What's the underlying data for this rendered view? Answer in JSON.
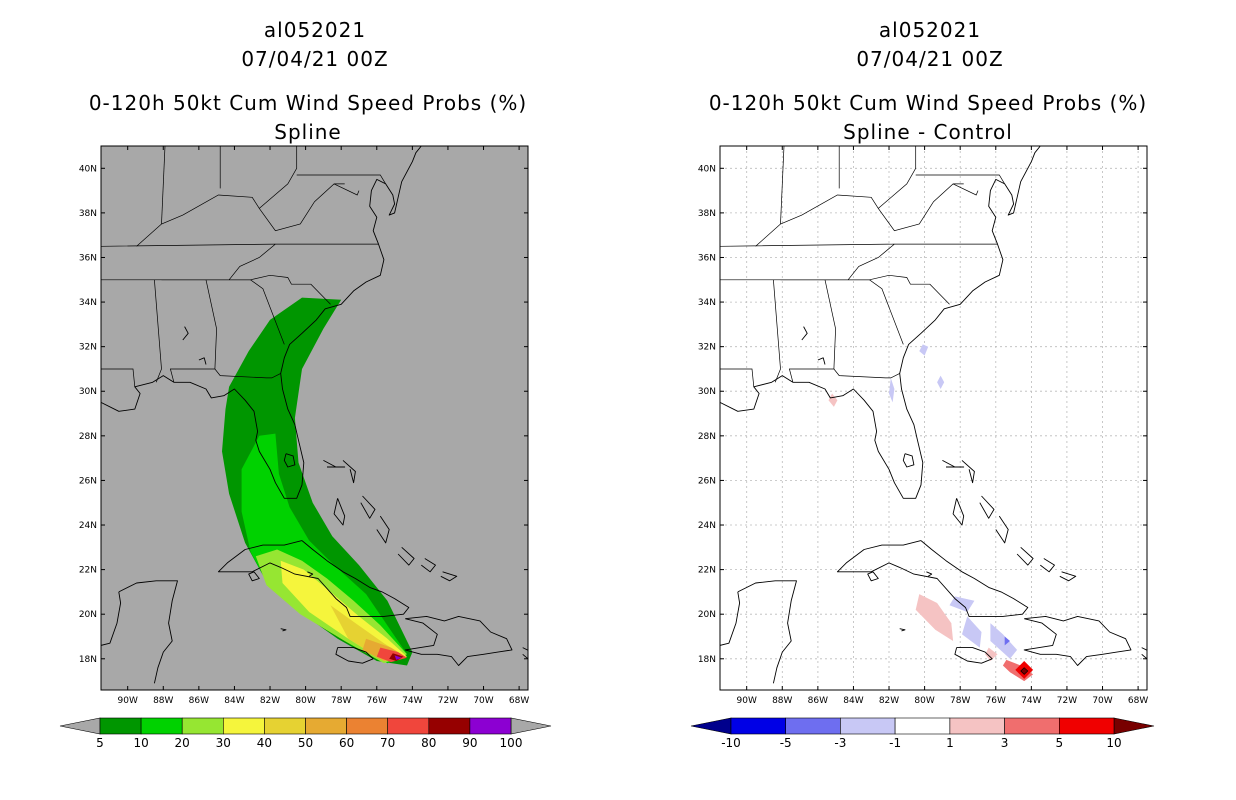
{
  "panels": [
    {
      "id": "left",
      "storm_id": "al052021",
      "datetime": "07/04/21 00Z",
      "product": "0-120h 50kt Cum Wind Speed Probs (%)",
      "variant": "Spline",
      "background": "#a8a8a8",
      "colorbar": {
        "labels": [
          "5",
          "10",
          "20",
          "30",
          "40",
          "50",
          "60",
          "70",
          "80",
          "90",
          "100"
        ],
        "colors": [
          "#009600",
          "#00d200",
          "#96e632",
          "#f5f53c",
          "#e6d232",
          "#e6aa32",
          "#eb8232",
          "#f0463c",
          "#960000",
          "#8c00d2"
        ],
        "arrow_color": "#a8a8a8"
      }
    },
    {
      "id": "right",
      "storm_id": "al052021",
      "datetime": "07/04/21 00Z",
      "product": "0-120h 50kt Cum Wind Speed Probs (%)",
      "variant": "Spline - Control",
      "background": "#ffffff",
      "colorbar": {
        "labels": [
          "-10",
          "-5",
          "-3",
          "-1",
          "1",
          "3",
          "5",
          "10"
        ],
        "colors": [
          "#0000e6",
          "#6e6ef0",
          "#c8c8f5",
          "#ffffff",
          "#f5c3c3",
          "#f06e6e",
          "#f00000"
        ],
        "arrow_left": "#00008c",
        "arrow_right": "#780000"
      }
    }
  ],
  "axes": {
    "lat_labels": [
      "40N",
      "38N",
      "36N",
      "34N",
      "32N",
      "30N",
      "28N",
      "26N",
      "24N",
      "22N",
      "20N",
      "18N"
    ],
    "lon_labels": [
      "90W",
      "88W",
      "86W",
      "84W",
      "82W",
      "80W",
      "78W",
      "76W",
      "74W",
      "72W",
      "70W",
      "68W"
    ],
    "lat_values": [
      40,
      38,
      36,
      34,
      32,
      30,
      28,
      26,
      24,
      22,
      20,
      18
    ],
    "lon_values": [
      -90,
      -88,
      -86,
      -84,
      -82,
      -80,
      -78,
      -76,
      -74,
      -72,
      -70,
      -68
    ],
    "lat_range": [
      16.6,
      41.0
    ],
    "lon_range": [
      -91.5,
      -67.5
    ]
  },
  "probability_field": [
    {
      "level": "5",
      "color": "#009600",
      "polygon": [
        [
          -84.5,
          29.2
        ],
        [
          -84.3,
          30.2
        ],
        [
          -83.2,
          31.8
        ],
        [
          -82.0,
          33.2
        ],
        [
          -80.2,
          34.2
        ],
        [
          -78.0,
          34.1
        ],
        [
          -79.0,
          32.8
        ],
        [
          -80.2,
          31.0
        ],
        [
          -80.6,
          28.8
        ],
        [
          -80.4,
          26.8
        ],
        [
          -79.6,
          25.0
        ],
        [
          -78.5,
          23.5
        ],
        [
          -77.0,
          22.2
        ],
        [
          -75.4,
          20.6
        ],
        [
          -74.0,
          18.3
        ],
        [
          -74.3,
          17.7
        ],
        [
          -76.0,
          17.9
        ],
        [
          -78.2,
          18.9
        ],
        [
          -80.5,
          20.2
        ],
        [
          -82.3,
          21.6
        ],
        [
          -83.4,
          23.2
        ],
        [
          -84.3,
          25.4
        ],
        [
          -84.7,
          27.3
        ]
      ]
    },
    {
      "level": "10",
      "color": "#00d200",
      "polygon": [
        [
          -83.6,
          26.5
        ],
        [
          -82.6,
          28.0
        ],
        [
          -81.7,
          28.1
        ],
        [
          -81.5,
          26.3
        ],
        [
          -80.9,
          24.8
        ],
        [
          -79.8,
          23.3
        ],
        [
          -78.4,
          22.2
        ],
        [
          -76.6,
          20.9
        ],
        [
          -74.3,
          18.2
        ],
        [
          -75.4,
          17.8
        ],
        [
          -77.4,
          18.6
        ],
        [
          -80.0,
          19.9
        ],
        [
          -82.0,
          21.2
        ],
        [
          -83.1,
          22.8
        ],
        [
          -83.6,
          24.6
        ]
      ]
    },
    {
      "level": "20",
      "color": "#96e632",
      "polygon": [
        [
          -82.8,
          22.6
        ],
        [
          -81.6,
          22.9
        ],
        [
          -80.2,
          22.4
        ],
        [
          -78.8,
          21.6
        ],
        [
          -77.3,
          20.6
        ],
        [
          -75.8,
          19.5
        ],
        [
          -74.3,
          18.2
        ],
        [
          -75.6,
          17.8
        ],
        [
          -77.8,
          18.8
        ],
        [
          -80.3,
          20.0
        ],
        [
          -82.2,
          21.3
        ]
      ]
    },
    {
      "level": "30",
      "color": "#f5f53c",
      "polygon": [
        [
          -81.4,
          22.4
        ],
        [
          -80.1,
          22.0
        ],
        [
          -78.6,
          21.0
        ],
        [
          -77.0,
          19.9
        ],
        [
          -75.4,
          18.9
        ],
        [
          -74.3,
          18.1
        ],
        [
          -75.6,
          17.9
        ],
        [
          -77.6,
          18.9
        ],
        [
          -79.8,
          20.1
        ],
        [
          -81.3,
          21.4
        ]
      ]
    },
    {
      "level": "40",
      "color": "#e6d232",
      "polygon": [
        [
          -78.6,
          20.4
        ],
        [
          -77.2,
          19.6
        ],
        [
          -75.6,
          18.7
        ],
        [
          -74.4,
          18.1
        ],
        [
          -75.8,
          18.0
        ],
        [
          -77.6,
          18.9
        ]
      ]
    },
    {
      "level": "60",
      "color": "#e6aa32",
      "polygon": [
        [
          -76.6,
          18.9
        ],
        [
          -75.2,
          18.5
        ],
        [
          -74.4,
          18.1
        ],
        [
          -75.6,
          17.9
        ],
        [
          -76.8,
          18.4
        ]
      ]
    },
    {
      "level": "70",
      "color": "#f0463c",
      "polygon": [
        [
          -75.8,
          18.5
        ],
        [
          -74.8,
          18.3
        ],
        [
          -74.3,
          18.05
        ],
        [
          -75.2,
          17.85
        ],
        [
          -76.0,
          18.1
        ]
      ]
    },
    {
      "level": "90",
      "color": "#960000",
      "polygon": [
        [
          -75.1,
          18.25
        ],
        [
          -74.5,
          18.1
        ],
        [
          -74.9,
          17.9
        ],
        [
          -75.3,
          18.0
        ]
      ]
    },
    {
      "level": "100",
      "color": "#8c00d2",
      "polygon": [
        [
          -75.0,
          18.15
        ],
        [
          -74.6,
          18.05
        ],
        [
          -74.9,
          17.95
        ]
      ]
    }
  ],
  "difference_field": [
    {
      "level": "-3",
      "color": "#c8c8f5",
      "polygon": [
        [
          -80.1,
          32.1
        ],
        [
          -79.8,
          32.0
        ],
        [
          -80.0,
          31.6
        ],
        [
          -80.3,
          31.8
        ]
      ]
    },
    {
      "level": "-3",
      "color": "#c8c8f5",
      "polygon": [
        [
          -79.1,
          30.7
        ],
        [
          -78.9,
          30.4
        ],
        [
          -79.1,
          30.1
        ],
        [
          -79.3,
          30.4
        ]
      ]
    },
    {
      "level": "-3",
      "color": "#c8c8f5",
      "polygon": [
        [
          -81.9,
          30.6
        ],
        [
          -81.7,
          30.1
        ],
        [
          -81.8,
          29.5
        ],
        [
          -82.0,
          29.9
        ]
      ]
    },
    {
      "level": "-3",
      "color": "#c8c8f5",
      "polygon": [
        [
          -78.3,
          20.8
        ],
        [
          -77.2,
          20.6
        ],
        [
          -77.6,
          20.1
        ],
        [
          -78.6,
          20.4
        ]
      ]
    },
    {
      "level": "-3",
      "color": "#c8c8f5",
      "polygon": [
        [
          -77.6,
          19.9
        ],
        [
          -76.8,
          19.2
        ],
        [
          -76.9,
          18.5
        ],
        [
          -77.9,
          19.1
        ]
      ]
    },
    {
      "level": "-3",
      "color": "#c8c8f5",
      "polygon": [
        [
          -76.3,
          19.6
        ],
        [
          -75.6,
          19.1
        ],
        [
          -74.8,
          18.4
        ],
        [
          -75.2,
          18.0
        ],
        [
          -76.3,
          18.8
        ]
      ]
    },
    {
      "level": "-5",
      "color": "#6e6ef0",
      "polygon": [
        [
          -75.5,
          19.0
        ],
        [
          -75.2,
          18.8
        ],
        [
          -75.5,
          18.6
        ]
      ]
    },
    {
      "level": "1",
      "color": "#f5c3c3",
      "polygon": [
        [
          -80.3,
          20.9
        ],
        [
          -79.3,
          20.5
        ],
        [
          -78.5,
          19.6
        ],
        [
          -78.4,
          18.8
        ],
        [
          -79.4,
          19.3
        ],
        [
          -80.5,
          20.2
        ]
      ]
    },
    {
      "level": "1",
      "color": "#f5c3c3",
      "polygon": [
        [
          -76.4,
          18.5
        ],
        [
          -75.9,
          18.2
        ],
        [
          -76.3,
          17.9
        ],
        [
          -76.6,
          18.2
        ]
      ]
    },
    {
      "level": "1",
      "color": "#f5c3c3",
      "polygon": [
        [
          -85.2,
          29.9
        ],
        [
          -84.9,
          29.6
        ],
        [
          -85.1,
          29.3
        ],
        [
          -85.4,
          29.6
        ]
      ]
    },
    {
      "level": "3",
      "color": "#f06e6e",
      "polygon": [
        [
          -75.4,
          17.95
        ],
        [
          -74.6,
          17.7
        ],
        [
          -73.9,
          17.3
        ],
        [
          -74.4,
          17.0
        ],
        [
          -75.2,
          17.4
        ],
        [
          -75.6,
          17.7
        ]
      ]
    },
    {
      "level": "5",
      "color": "#f00000",
      "polygon": [
        [
          -74.4,
          17.9
        ],
        [
          -73.9,
          17.5
        ],
        [
          -74.4,
          17.1
        ],
        [
          -74.9,
          17.5
        ]
      ]
    },
    {
      "level": "10",
      "color": "#780000",
      "polygon": [
        [
          -74.4,
          17.6
        ],
        [
          -74.2,
          17.45
        ],
        [
          -74.4,
          17.3
        ],
        [
          -74.6,
          17.45
        ]
      ]
    }
  ]
}
